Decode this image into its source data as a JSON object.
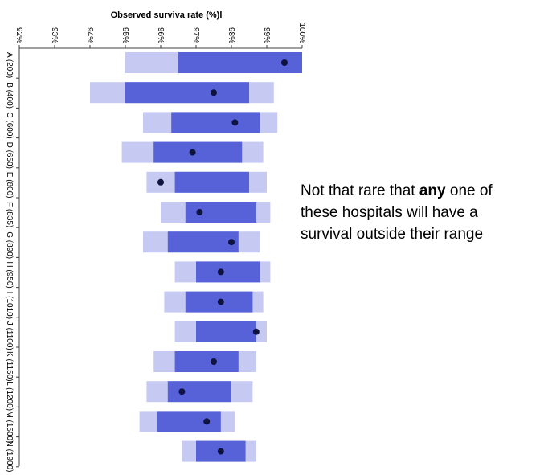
{
  "chart_data": {
    "type": "range-bar",
    "title": "Observed surviva rate (%)l",
    "x_ticks": [
      "92%",
      "93%",
      "94%",
      "95%",
      "96%",
      "97%",
      "98%",
      "99%",
      "100%"
    ],
    "xlim": [
      92,
      100
    ],
    "colors": {
      "outer": "#c6c9f2",
      "inner": "#5762d8",
      "dot": "#0f1340",
      "axis": "#404040"
    },
    "series": [
      {
        "label": "A (200)",
        "outer": [
          95.0,
          100.0
        ],
        "inner": [
          96.5,
          100.0
        ],
        "observed": 99.5
      },
      {
        "label": "B (400)",
        "outer": [
          94.0,
          99.2
        ],
        "inner": [
          95.0,
          98.5
        ],
        "observed": 97.5
      },
      {
        "label": "C (600)",
        "outer": [
          95.5,
          99.3
        ],
        "inner": [
          96.3,
          98.8
        ],
        "observed": 98.1
      },
      {
        "label": "D (650)",
        "outer": [
          94.9,
          98.9
        ],
        "inner": [
          95.8,
          98.3
        ],
        "observed": 96.9
      },
      {
        "label": "E (800)",
        "outer": [
          95.6,
          99.0
        ],
        "inner": [
          96.4,
          98.5
        ],
        "observed": 96.0
      },
      {
        "label": "F (835)",
        "outer": [
          96.0,
          99.1
        ],
        "inner": [
          96.7,
          98.7
        ],
        "observed": 97.1
      },
      {
        "label": "G (890)",
        "outer": [
          95.5,
          98.8
        ],
        "inner": [
          96.2,
          98.2
        ],
        "observed": 98.0
      },
      {
        "label": "H (950)",
        "outer": [
          96.4,
          99.1
        ],
        "inner": [
          97.0,
          98.8
        ],
        "observed": 97.7
      },
      {
        "label": "I (1010)",
        "outer": [
          96.1,
          98.9
        ],
        "inner": [
          96.7,
          98.6
        ],
        "observed": 97.7
      },
      {
        "label": "J (1100)",
        "outer": [
          96.4,
          99.0
        ],
        "inner": [
          97.0,
          98.7
        ],
        "observed": 98.7
      },
      {
        "label": "K (1150)",
        "outer": [
          95.8,
          98.7
        ],
        "inner": [
          96.4,
          98.2
        ],
        "observed": 97.5
      },
      {
        "label": "L (1200)",
        "outer": [
          95.6,
          98.6
        ],
        "inner": [
          96.2,
          98.0
        ],
        "observed": 96.6
      },
      {
        "label": "M (1500)",
        "outer": [
          95.4,
          98.1
        ],
        "inner": [
          95.9,
          97.7
        ],
        "observed": 97.3
      },
      {
        "label": "N (1900)",
        "outer": [
          96.6,
          98.7
        ],
        "inner": [
          97.0,
          98.4
        ],
        "observed": 97.7
      }
    ]
  },
  "annotation": {
    "pre": "Not that rare that ",
    "bold": "any",
    "post": " one of these hospitals will have a survival outside their range"
  }
}
